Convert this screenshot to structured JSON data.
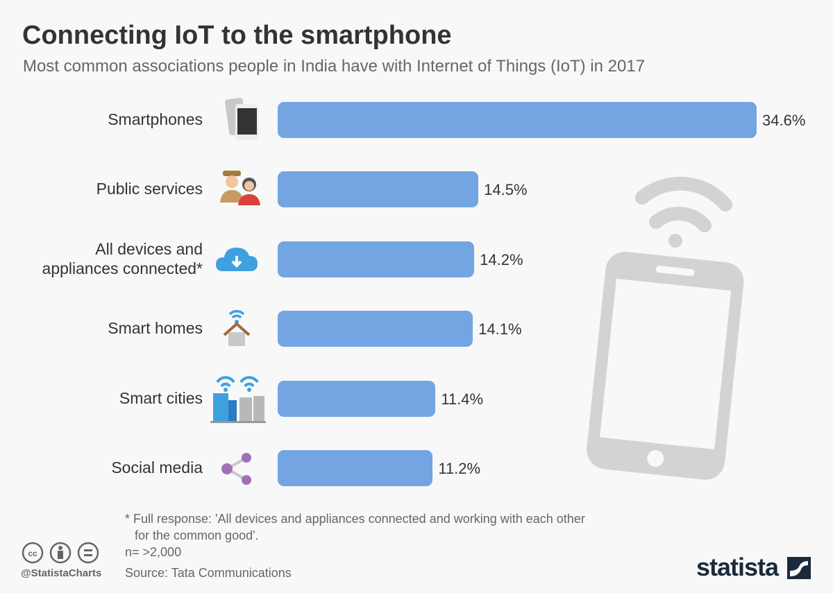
{
  "chart_data": {
    "type": "bar",
    "orientation": "horizontal",
    "title": "Connecting IoT to the smartphone",
    "subtitle": "Most common associations people in India have with Internet of Things (IoT) in 2017",
    "categories": [
      "Smartphones",
      "Public services",
      "All devices and appliances connected*",
      "Smart homes",
      "Smart cities",
      "Social media"
    ],
    "values": [
      34.6,
      14.5,
      14.2,
      14.1,
      11.4,
      11.2
    ],
    "value_labels": [
      "34.6%",
      "14.5%",
      "14.2%",
      "14.1%",
      "11.4%",
      "11.2%"
    ],
    "icons": [
      "smartphones-icon",
      "public-services-icon",
      "cloud-download-icon",
      "smart-home-icon",
      "smart-city-icon",
      "share-icon"
    ],
    "unit": "%",
    "bar_color": "#73a5e2",
    "grid": false
  },
  "footer": {
    "note_line1": "* Full response: 'All devices and appliances connected and working with each other",
    "note_line2": "for the common good'.",
    "sample": "n= >2,000",
    "source": "Source: Tata Communications",
    "handle": "@StatistaCharts",
    "brand": "statista"
  }
}
